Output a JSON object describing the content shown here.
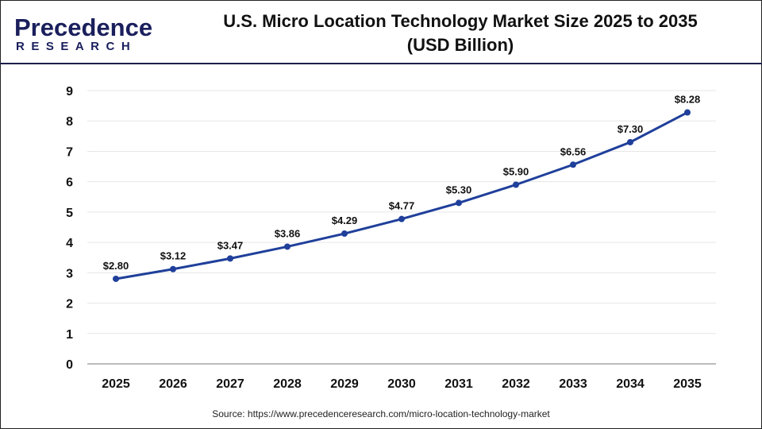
{
  "header": {
    "logo_line1": "Precedence",
    "logo_line2": "RESEARCH",
    "title_line1": "U.S. Micro Location Technology Market Size 2025 to 2035",
    "title_line2": "(USD Billion)"
  },
  "source": "Source: https://www.precedenceresearch.com/micro-location-technology-market",
  "chart_data": {
    "type": "line",
    "title": "U.S. Micro Location Technology Market Size 2025 to 2035 (USD Billion)",
    "categories": [
      "2025",
      "2026",
      "2027",
      "2028",
      "2029",
      "2030",
      "2031",
      "2032",
      "2033",
      "2034",
      "2035"
    ],
    "series": [
      {
        "values": [
          2.8,
          3.12,
          3.47,
          3.86,
          4.29,
          4.77,
          5.3,
          5.9,
          6.56,
          7.3,
          8.28
        ],
        "labels": [
          "$2.80",
          "$3.12",
          "$3.47",
          "$3.86",
          "$4.29",
          "$4.77",
          "$5.30",
          "$5.90",
          "$6.56",
          "$7.30",
          "$8.28"
        ],
        "color": "#1f3f9a"
      }
    ],
    "yticks": [
      "0",
      "1",
      "2",
      "3",
      "4",
      "5",
      "6",
      "7",
      "8",
      "9"
    ],
    "ylim": [
      0,
      9
    ],
    "grid": true,
    "legend": "none"
  }
}
